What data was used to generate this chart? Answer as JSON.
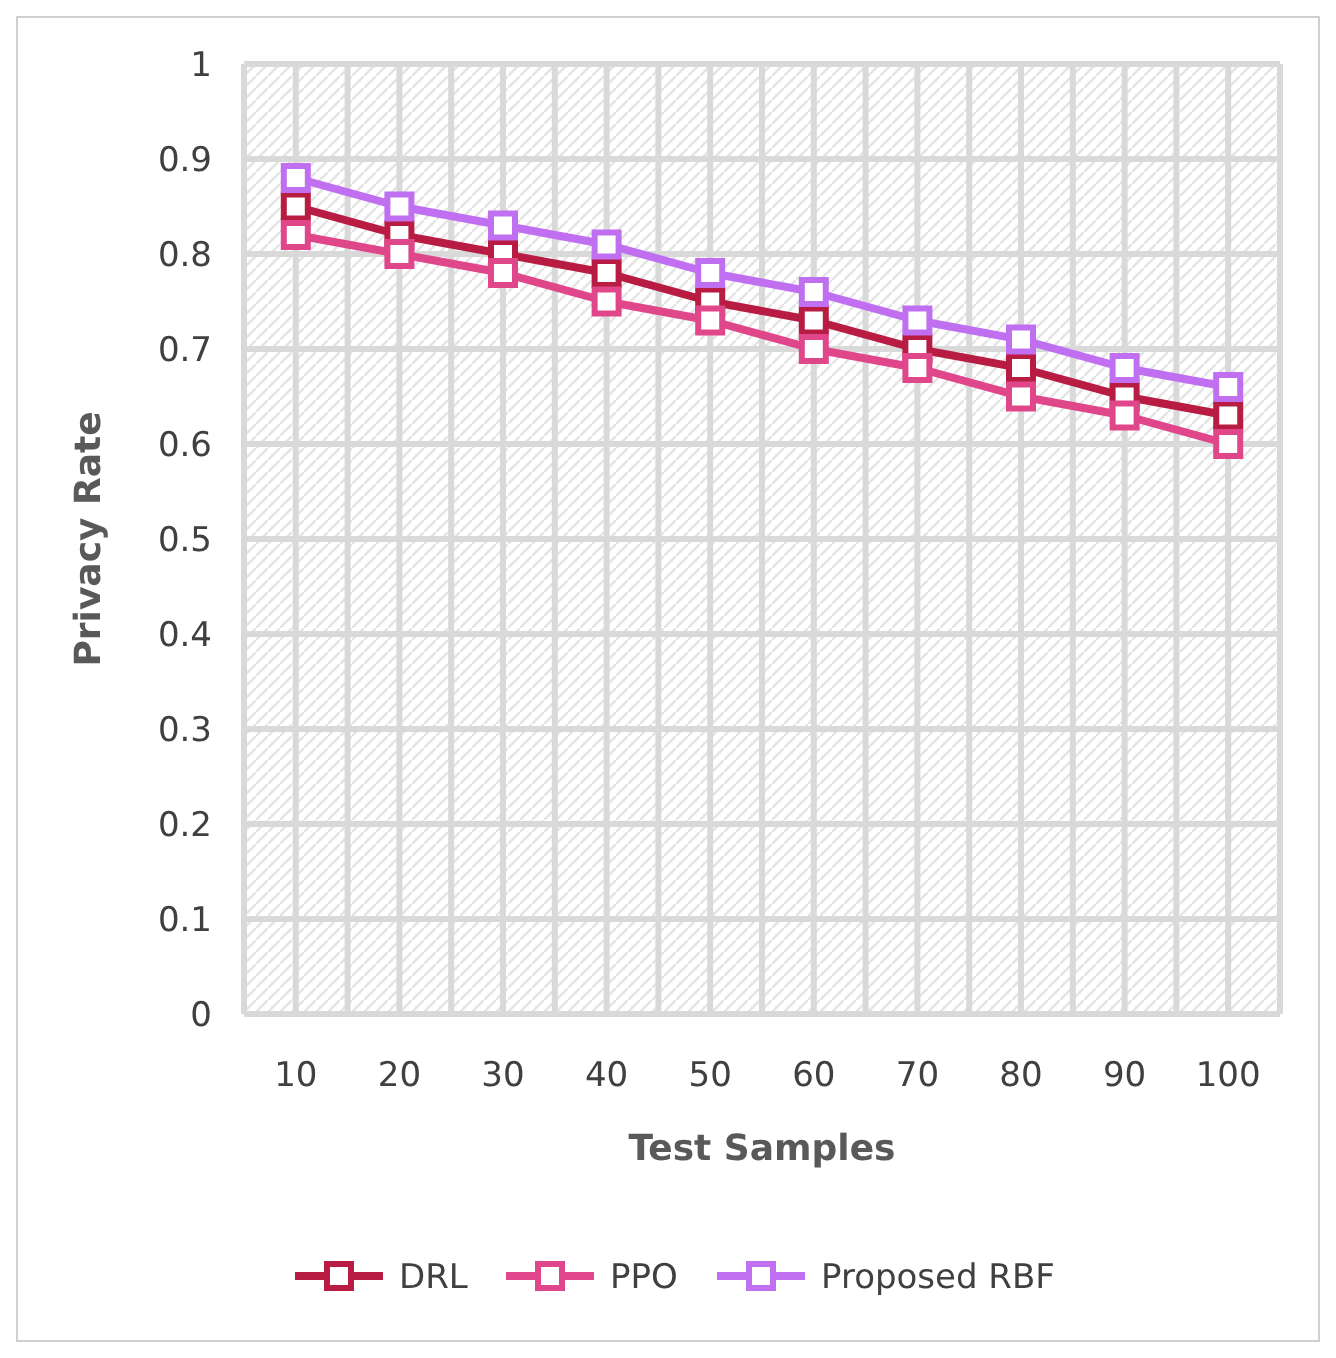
{
  "chart_data": {
    "type": "line",
    "xlabel": "Test Samples",
    "ylabel": "Privacy Rate",
    "categories": [
      "10",
      "20",
      "30",
      "40",
      "50",
      "60",
      "70",
      "80",
      "90",
      "100"
    ],
    "series": [
      {
        "name": "DRL",
        "color": "#b81c42",
        "values": [
          0.85,
          0.82,
          0.8,
          0.78,
          0.75,
          0.73,
          0.7,
          0.68,
          0.65,
          0.63
        ]
      },
      {
        "name": "PPO",
        "color": "#e0468a",
        "values": [
          0.82,
          0.8,
          0.78,
          0.75,
          0.73,
          0.7,
          0.68,
          0.65,
          0.63,
          0.6
        ]
      },
      {
        "name": "Proposed RBF",
        "color": "#bf6ff0",
        "values": [
          0.88,
          0.85,
          0.83,
          0.81,
          0.78,
          0.76,
          0.73,
          0.71,
          0.68,
          0.66
        ]
      }
    ],
    "ylim": [
      0,
      1
    ],
    "yticks": [
      0,
      0.1,
      0.2,
      0.3,
      0.4,
      0.5,
      0.6,
      0.7,
      0.8,
      0.9,
      1
    ],
    "grid": true,
    "legend": "bottom",
    "marker": "square",
    "line_style": "solid"
  }
}
